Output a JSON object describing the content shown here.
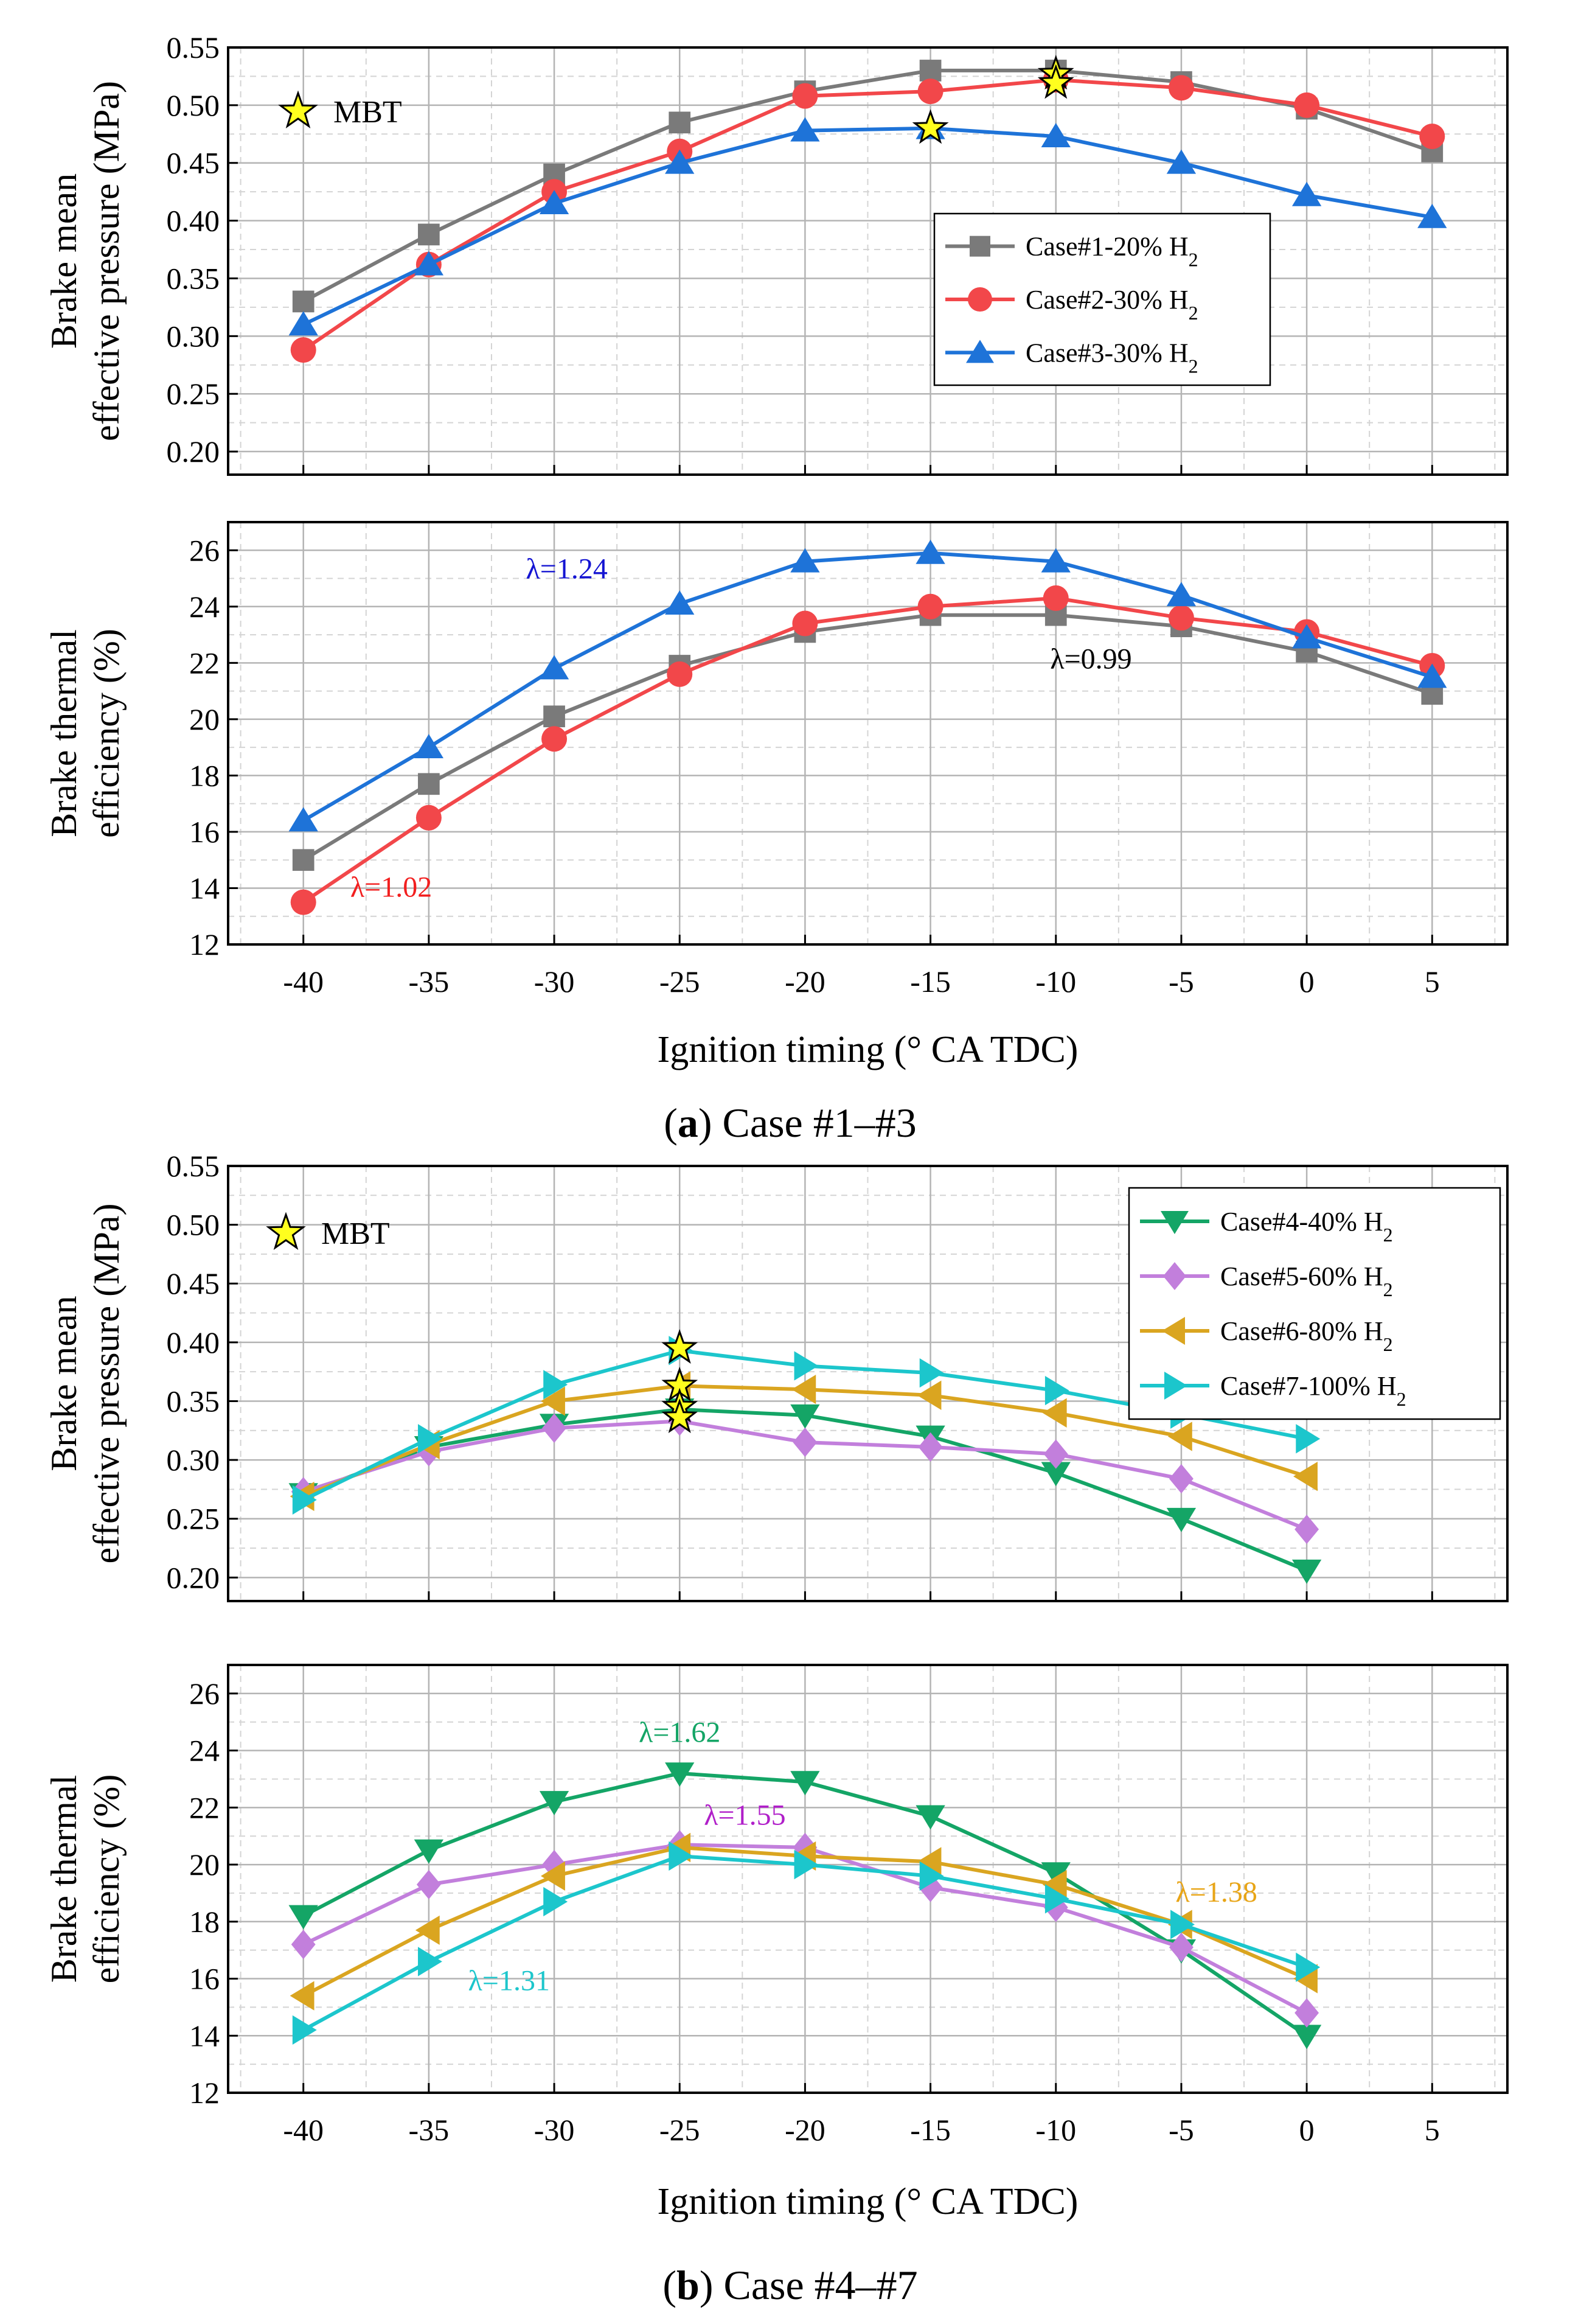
{
  "chart_data": [
    {
      "id": "a_bmep",
      "type": "line",
      "panel": "a",
      "ylabel_line1": "Brake mean",
      "ylabel_line2": "effective pressure (MPa)",
      "ylim": [
        0.18,
        0.55
      ],
      "yticks": [
        "0.20",
        "0.25",
        "0.30",
        "0.35",
        "0.40",
        "0.45",
        "0.50",
        "0.55"
      ],
      "xlim": [
        -43,
        8
      ],
      "x": [
        -40,
        -35,
        -30,
        -25,
        -20,
        -15,
        -10,
        -5,
        0,
        5
      ],
      "series": [
        {
          "name": "Case#1-20% H",
          "sub": "2",
          "color": "#7a7a7a",
          "marker": "square",
          "values": [
            0.33,
            0.388,
            0.44,
            0.485,
            0.512,
            0.53,
            0.53,
            0.52,
            0.497,
            0.46
          ]
        },
        {
          "name": "Case#2-30% H",
          "sub": "2",
          "color": "#f2474a",
          "marker": "circle",
          "values": [
            0.288,
            0.362,
            0.425,
            0.46,
            0.508,
            0.512,
            0.522,
            0.515,
            0.5,
            0.473
          ]
        },
        {
          "name": "Case#3-30% H",
          "sub": "2",
          "color": "#1e73d8",
          "marker": "triangle-up",
          "values": [
            0.31,
            0.362,
            0.415,
            0.45,
            0.478,
            0.48,
            0.473,
            0.45,
            0.422,
            0.403
          ]
        }
      ],
      "mbt_points": [
        {
          "x": -10,
          "y": 0.527
        },
        {
          "x": -10,
          "y": 0.519
        },
        {
          "x": -15,
          "y": 0.48
        }
      ],
      "mbt_legend_label": "MBT"
    },
    {
      "id": "a_bte",
      "type": "line",
      "panel": "a",
      "ylabel_line1": "Brake thermal",
      "ylabel_line2": "efficiency (%)",
      "ylim": [
        12,
        27
      ],
      "yticks": [
        "12",
        "14",
        "16",
        "18",
        "20",
        "22",
        "24",
        "26"
      ],
      "xlim": [
        -43,
        8
      ],
      "xticks": [
        "-40",
        "-35",
        "-30",
        "-25",
        "-20",
        "-15",
        "-10",
        "-5",
        "0",
        "5"
      ],
      "x": [
        -40,
        -35,
        -30,
        -25,
        -20,
        -15,
        -10,
        -5,
        0,
        5
      ],
      "series": [
        {
          "name": "Case#1",
          "color": "#7a7a7a",
          "marker": "square",
          "values": [
            15.0,
            17.7,
            20.1,
            21.9,
            23.1,
            23.7,
            23.7,
            23.3,
            22.4,
            20.9
          ]
        },
        {
          "name": "Case#2",
          "color": "#f2474a",
          "marker": "circle",
          "values": [
            13.5,
            16.5,
            19.3,
            21.6,
            23.4,
            24.0,
            24.3,
            23.6,
            23.1,
            21.9
          ]
        },
        {
          "name": "Case#3",
          "color": "#1e73d8",
          "marker": "triangle-up",
          "values": [
            16.4,
            19.0,
            21.8,
            24.1,
            25.6,
            25.9,
            25.6,
            24.4,
            22.9,
            21.5
          ]
        }
      ],
      "annotations": [
        {
          "text": "λ=1.24",
          "color": "#1414d2",
          "x": -29.5,
          "y": 25.0
        },
        {
          "text": "λ=0.99",
          "color": "#000000",
          "x": -8.6,
          "y": 21.8
        },
        {
          "text": "λ=1.02",
          "color": "#f21f1f",
          "x": -36.5,
          "y": 13.7
        }
      ],
      "xlabel": "Ignition timing (° CA TDC)"
    },
    {
      "id": "b_bmep",
      "type": "line",
      "panel": "b",
      "ylabel_line1": "Brake mean",
      "ylabel_line2": "effective pressure (MPa)",
      "ylim": [
        0.18,
        0.55
      ],
      "yticks": [
        "0.20",
        "0.25",
        "0.30",
        "0.35",
        "0.40",
        "0.45",
        "0.50",
        "0.55"
      ],
      "xlim": [
        -43,
        8
      ],
      "x": [
        -40,
        -35,
        -30,
        -25,
        -20,
        -15,
        -10,
        -5,
        0
      ],
      "series": [
        {
          "name": "Case#4-40% H",
          "sub": "2",
          "color": "#14a566",
          "marker": "triangle-down",
          "values": [
            0.271,
            0.311,
            0.33,
            0.343,
            0.338,
            0.32,
            0.289,
            0.25,
            0.206
          ]
        },
        {
          "name": "Case#5-60% H",
          "sub": "2",
          "color": "#c27fdc",
          "marker": "diamond",
          "values": [
            0.273,
            0.307,
            0.327,
            0.333,
            0.315,
            0.311,
            0.305,
            0.284,
            0.241
          ]
        },
        {
          "name": "Case#6-80% H",
          "sub": "2",
          "color": "#daa520",
          "marker": "triangle-left",
          "values": [
            0.269,
            0.313,
            0.35,
            0.363,
            0.36,
            0.355,
            0.34,
            0.32,
            0.286
          ]
        },
        {
          "name": "Case#7-100% H",
          "sub": "2",
          "color": "#1cc6cc",
          "marker": "triangle-right",
          "values": [
            0.266,
            0.318,
            0.364,
            0.393,
            0.38,
            0.374,
            0.359,
            0.339,
            0.318
          ]
        }
      ],
      "mbt_points": [
        {
          "x": -25,
          "y": 0.395
        },
        {
          "x": -25,
          "y": 0.363
        },
        {
          "x": -25,
          "y": 0.345
        },
        {
          "x": -25,
          "y": 0.336
        }
      ],
      "mbt_legend_label": "MBT"
    },
    {
      "id": "b_bte",
      "type": "line",
      "panel": "b",
      "ylabel_line1": "Brake thermal",
      "ylabel_line2": "efficiency (%)",
      "ylim": [
        12,
        27
      ],
      "yticks": [
        "12",
        "14",
        "16",
        "18",
        "20",
        "22",
        "24",
        "26"
      ],
      "xlim": [
        -43,
        8
      ],
      "xticks": [
        "-40",
        "-35",
        "-30",
        "-25",
        "-20",
        "-15",
        "-10",
        "-5",
        "0",
        "5"
      ],
      "x": [
        -40,
        -35,
        -30,
        -25,
        -20,
        -15,
        -10,
        -5,
        0
      ],
      "series": [
        {
          "name": "Case#4",
          "color": "#14a566",
          "marker": "triangle-down",
          "values": [
            18.2,
            20.5,
            22.2,
            23.2,
            22.9,
            21.7,
            19.7,
            17.0,
            14.0
          ]
        },
        {
          "name": "Case#5",
          "color": "#c27fdc",
          "marker": "diamond",
          "values": [
            17.2,
            19.3,
            20.0,
            20.7,
            20.6,
            19.2,
            18.5,
            17.1,
            14.8
          ]
        },
        {
          "name": "Case#6",
          "color": "#daa520",
          "marker": "triangle-left",
          "values": [
            15.4,
            17.7,
            19.6,
            20.6,
            20.3,
            20.1,
            19.3,
            17.9,
            16.0
          ]
        },
        {
          "name": "Case#7",
          "color": "#1cc6cc",
          "marker": "triangle-right",
          "values": [
            14.2,
            16.6,
            18.7,
            20.3,
            20.0,
            19.6,
            18.8,
            17.9,
            16.4
          ]
        }
      ],
      "annotations": [
        {
          "text": "λ=1.62",
          "color": "#14a566",
          "x": -25,
          "y": 24.3
        },
        {
          "text": "λ=1.55",
          "color": "#b01fc9",
          "x": -22.4,
          "y": 21.4
        },
        {
          "text": "λ=1.38",
          "color": "#e8a517",
          "x": -3.6,
          "y": 18.7
        },
        {
          "text": "λ=1.31",
          "color": "#1cc6cc",
          "x": -31.8,
          "y": 15.6
        }
      ],
      "xlabel": "Ignition timing (° CA TDC)"
    }
  ],
  "captions": {
    "a_bold": "a",
    "a_rest": ") Case #1–#3",
    "b_bold": "b",
    "b_rest": ") Case #4–#7",
    "open_paren": "("
  }
}
